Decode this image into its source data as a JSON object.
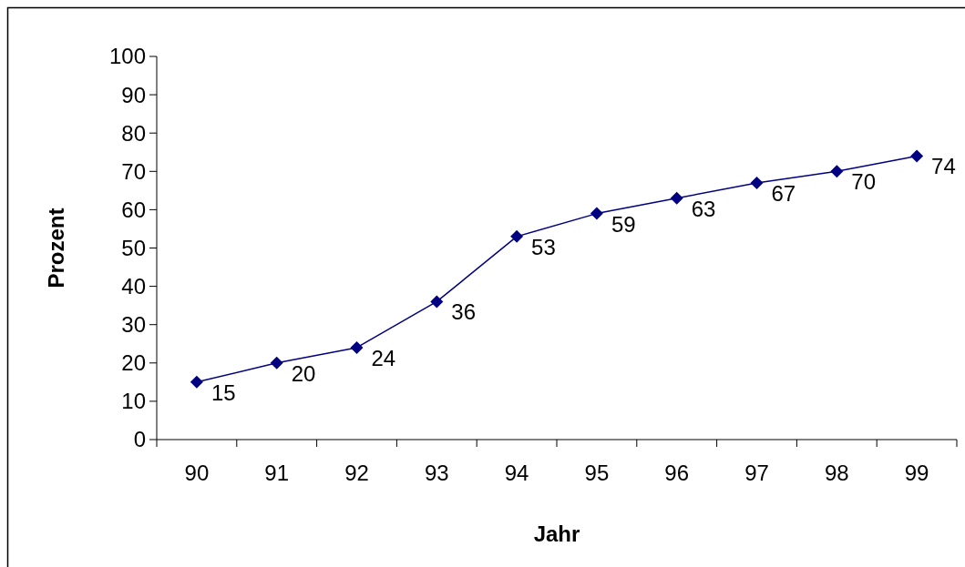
{
  "chart_data": {
    "type": "line",
    "xlabel": "Jahr",
    "ylabel": "Prozent",
    "categories": [
      "90",
      "91",
      "92",
      "93",
      "94",
      "95",
      "96",
      "97",
      "98",
      "99"
    ],
    "series": [
      {
        "color": "#000080",
        "values": [
          15,
          20,
          24,
          36,
          53,
          59,
          63,
          67,
          70,
          74
        ]
      }
    ],
    "ylim": [
      0,
      100
    ],
    "yticks": [
      0,
      10,
      20,
      30,
      40,
      50,
      60,
      70,
      80,
      90,
      100
    ],
    "marker": "diamond",
    "line_style": "solid",
    "data_labels": true
  }
}
